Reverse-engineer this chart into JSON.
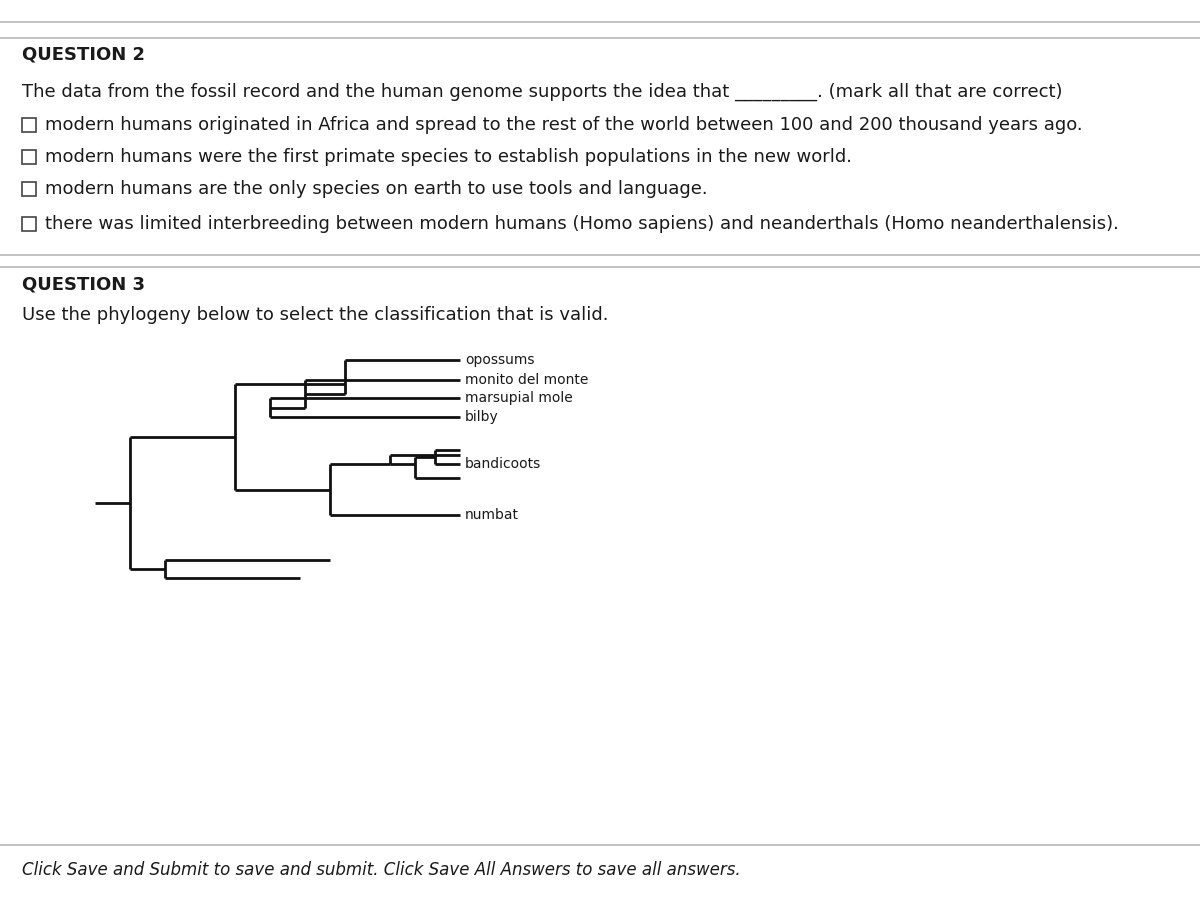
{
  "bg_color": "#d8d8d8",
  "q2_title": "QUESTION 2",
  "q2_prompt": "The data from the fossil record and the human genome supports the idea that _________. (mark all that are correct)",
  "q2_options": [
    "modern humans originated in Africa and spread to the rest of the world between 100 and 200 thousand years ago.",
    "modern humans were the first primate species to establish populations in the new world.",
    "modern humans are the only species on earth to use tools and language.",
    "there was limited interbreeding between modern humans (Homo sapiens) and neanderthals (Homo neanderthalensis)."
  ],
  "q3_title": "QUESTION 3",
  "q3_prompt": "Use the phylogeny below to select the classification that is valid.",
  "taxa": [
    "opossums",
    "monito del monte",
    "marsupial mole",
    "bilby",
    "bandicoots",
    "numbat"
  ],
  "footer": "Click Save and Submit to save and submit. Click Save All Answers to save all answers.",
  "text_color": "#1a1a1a",
  "separator_color": "#b8b8b8",
  "checkbox_color": "#ffffff",
  "checkbox_border": "#444444",
  "q2_title_fontsize": 13,
  "body_fontsize": 13,
  "option_fontsize": 13,
  "footer_fontsize": 12,
  "tree_fontsize": 10,
  "q3_title_fontsize": 13
}
